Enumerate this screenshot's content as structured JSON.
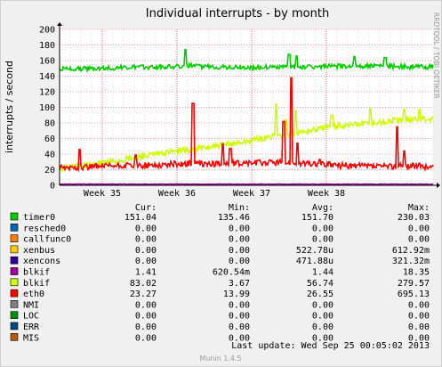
{
  "chart_data": {
    "type": "line",
    "title": "Individual interrupts - by month",
    "ylabel": "interrupts / second",
    "side_credit": "RRDTOOL / TOBI OETIKER",
    "ylim": [
      0,
      200
    ],
    "y_ticks": [
      0,
      20,
      40,
      60,
      80,
      100,
      120,
      140,
      160,
      180,
      200
    ],
    "x_ticks": [
      "Week 35",
      "Week 36",
      "Week 37",
      "Week 38"
    ],
    "x_domain_days": [
      0,
      35
    ],
    "x_tick_days": [
      4,
      11,
      18,
      25
    ],
    "grid": true,
    "legend_headers": {
      "cur": "Cur:",
      "min": "Min:",
      "avg": "Avg:",
      "max": "Max:"
    },
    "series": [
      {
        "name": "timer0",
        "color": "#00cc00",
        "cur": "151.04",
        "min": "135.46",
        "avg": "151.70",
        "max": "230.03",
        "trend": [
          [
            0,
            149
          ],
          [
            3,
            150
          ],
          [
            6,
            151
          ],
          [
            9,
            152
          ],
          [
            12,
            153
          ],
          [
            15,
            152
          ],
          [
            18,
            151
          ],
          [
            21,
            152
          ],
          [
            24,
            152
          ],
          [
            27,
            153
          ],
          [
            30,
            153
          ],
          [
            33,
            152
          ],
          [
            35,
            152
          ]
        ],
        "spikes": [
          [
            11.8,
            174
          ],
          [
            21.5,
            168
          ],
          [
            22.2,
            166
          ],
          [
            27.6,
            165
          ],
          [
            30.5,
            164
          ]
        ]
      },
      {
        "name": "resched0",
        "color": "#0066b3",
        "cur": "0.00",
        "min": "0.00",
        "avg": "0.00",
        "max": "0.00",
        "trend": [
          [
            0,
            0
          ],
          [
            35,
            0
          ]
        ],
        "spikes": []
      },
      {
        "name": "callfunc0",
        "color": "#ff8000",
        "cur": "0.00",
        "min": "0.00",
        "avg": "0.00",
        "max": "0.00",
        "trend": [
          [
            0,
            0
          ],
          [
            35,
            0
          ]
        ],
        "spikes": []
      },
      {
        "name": "xenbus",
        "color": "#ffcc00",
        "cur": "0.00",
        "min": "0.00",
        "avg": "522.78u",
        "max": "612.92m",
        "trend": [
          [
            0,
            0
          ],
          [
            35,
            0
          ]
        ],
        "spikes": []
      },
      {
        "name": "xencons",
        "color": "#330099",
        "cur": "0.00",
        "min": "0.00",
        "avg": "471.88u",
        "max": "321.32m",
        "trend": [
          [
            0,
            0
          ],
          [
            35,
            0
          ]
        ],
        "spikes": []
      },
      {
        "name": "blkif",
        "color": "#990099",
        "cur": "1.41",
        "min": "620.54m",
        "avg": "1.44",
        "max": "18.35",
        "trend": [
          [
            0,
            1.5
          ],
          [
            35,
            1.4
          ]
        ],
        "spikes": []
      },
      {
        "name": "blkif",
        "color": "#ccff00",
        "cur": "83.02",
        "min": "3.67",
        "avg": "56.74",
        "max": "279.57",
        "trend": [
          [
            0,
            22
          ],
          [
            3,
            27
          ],
          [
            6,
            33
          ],
          [
            9,
            40
          ],
          [
            12,
            45
          ],
          [
            15,
            51
          ],
          [
            18,
            58
          ],
          [
            21,
            65
          ],
          [
            24,
            72
          ],
          [
            27,
            78
          ],
          [
            30,
            81
          ],
          [
            33,
            85
          ],
          [
            35,
            84
          ]
        ],
        "spikes": [
          [
            20.3,
            104
          ],
          [
            21.2,
            84
          ],
          [
            22.1,
            96
          ],
          [
            25.5,
            90
          ],
          [
            29.1,
            99
          ],
          [
            32.3,
            98
          ],
          [
            33.7,
            97
          ]
        ]
      },
      {
        "name": "eth0",
        "color": "#ff0000",
        "cur": "23.27",
        "min": "13.99",
        "avg": "26.55",
        "max": "695.13",
        "trend": [
          [
            0,
            22
          ],
          [
            3,
            24
          ],
          [
            6,
            25
          ],
          [
            9,
            26
          ],
          [
            12,
            28
          ],
          [
            15,
            27
          ],
          [
            18,
            29
          ],
          [
            21,
            30
          ],
          [
            24,
            27
          ],
          [
            27,
            25
          ],
          [
            30,
            24
          ],
          [
            33,
            25
          ],
          [
            35,
            23
          ]
        ],
        "spikes": [
          [
            1.9,
            46
          ],
          [
            7.1,
            39
          ],
          [
            12.5,
            105
          ],
          [
            15.3,
            53
          ],
          [
            16.0,
            47
          ],
          [
            21.0,
            82
          ],
          [
            21.7,
            138
          ],
          [
            22.3,
            54
          ],
          [
            24.4,
            33
          ],
          [
            31.6,
            75
          ],
          [
            32.3,
            44
          ]
        ]
      },
      {
        "name": "NMI",
        "color": "#808080",
        "cur": "0.00",
        "min": "0.00",
        "avg": "0.00",
        "max": "0.00",
        "trend": [
          [
            0,
            0
          ],
          [
            35,
            0
          ]
        ],
        "spikes": []
      },
      {
        "name": "LOC",
        "color": "#008f00",
        "cur": "0.00",
        "min": "0.00",
        "avg": "0.00",
        "max": "0.00",
        "trend": [
          [
            0,
            0
          ],
          [
            35,
            0
          ]
        ],
        "spikes": []
      },
      {
        "name": "ERR",
        "color": "#00487d",
        "cur": "0.00",
        "min": "0.00",
        "avg": "0.00",
        "max": "0.00",
        "trend": [
          [
            0,
            0
          ],
          [
            35,
            0
          ]
        ],
        "spikes": []
      },
      {
        "name": "MIS",
        "color": "#b35a00",
        "cur": "0.00",
        "min": "0.00",
        "avg": "0.00",
        "max": "0.00",
        "trend": [
          [
            0,
            0
          ],
          [
            35,
            0
          ]
        ],
        "spikes": []
      }
    ],
    "last_update": "Last update: Wed Sep 25 00:05:02 2013",
    "footer": "Munin 1.4.5"
  }
}
